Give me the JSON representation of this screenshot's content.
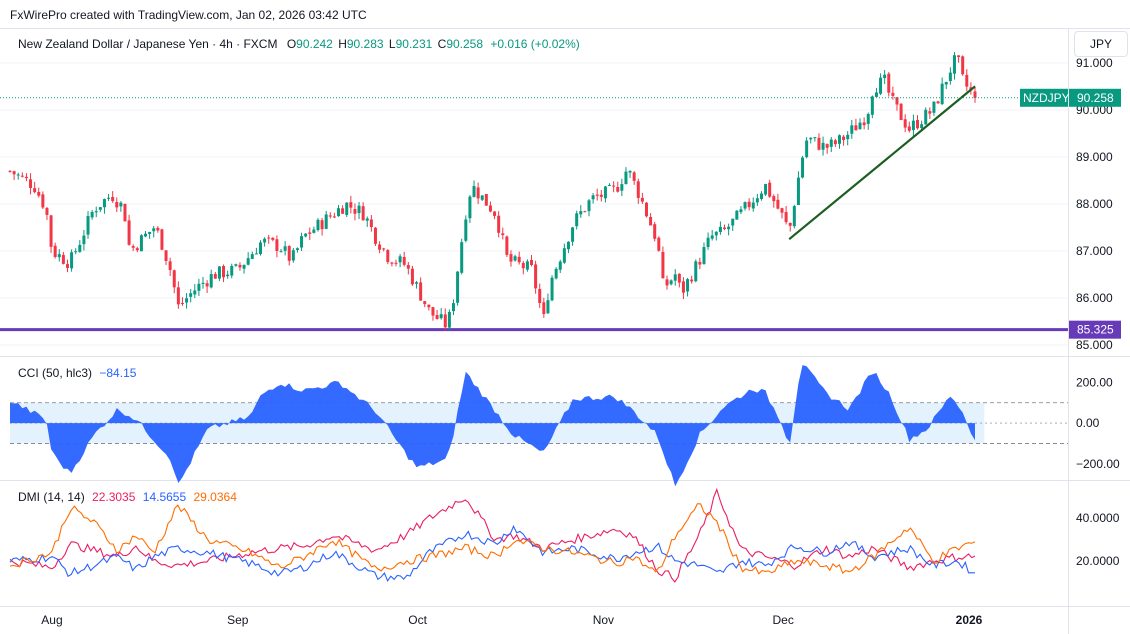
{
  "page_title": "FxWirePro created with TradingView.com, Jan 02, 2026 03:42 UTC",
  "symbol_header": {
    "name": "New Zealand Dollar / Japanese Yen · 4h · FXCM",
    "o_label": "O",
    "o_value": "90.242",
    "h_label": "H",
    "h_value": "90.283",
    "l_label": "L",
    "l_value": "90.231",
    "c_label": "C",
    "c_value": "90.258",
    "change": "+0.016 (+0.02%)"
  },
  "currency_button": "JPY",
  "price_axis_badge": {
    "symbol": "NZDJPY",
    "value": "90.258"
  },
  "support_badge": "85.325",
  "cci_header": {
    "label": "CCI (50, hlc3)",
    "value": "−84.15"
  },
  "dmi_header": {
    "label": "DMI (14, 14)",
    "plus_di": "22.3035",
    "minus_di": "14.5655",
    "adx": "29.0364"
  },
  "colors": {
    "up": "#089981",
    "down": "#f23645",
    "trendline": "#1b5e20",
    "support": "#673ab7",
    "cci_fill": "#2962ff",
    "cci_band": "#e3f2fd",
    "plus_di": "#e91e63",
    "minus_di": "#2962ff",
    "adx": "#ff6d00",
    "last_price": "#089981"
  },
  "chart_data": [
    {
      "type": "candlestick",
      "title": "New Zealand Dollar / Japanese Yen · 4h · FXCM",
      "y_axis_ticks": [
        "91.000",
        "90.000",
        "89.000",
        "88.000",
        "87.000",
        "86.000",
        "85.000"
      ],
      "ylim": [
        84.85,
        91.7
      ],
      "x_axis_ticks": [
        "Aug",
        "Sep",
        "Oct",
        "Nov",
        "Dec",
        "2026"
      ],
      "close_path": [
        [
          "Jul 25",
          88.7
        ],
        [
          "Jul 29",
          88.4
        ],
        [
          "Jul 31",
          87.9
        ],
        [
          "Aug 1",
          87.0
        ],
        [
          "Aug 4",
          86.75
        ],
        [
          "Aug 6",
          87.3
        ],
        [
          "Aug 8",
          87.9
        ],
        [
          "Aug 11",
          88.2
        ],
        [
          "Aug 13",
          87.9
        ],
        [
          "Aug 14",
          87.0
        ],
        [
          "Aug 18",
          87.5
        ],
        [
          "Aug 19",
          87.3
        ],
        [
          "Aug 21",
          86.5
        ],
        [
          "Aug 22",
          85.8
        ],
        [
          "Aug 25",
          86.2
        ],
        [
          "Aug 28",
          86.5
        ],
        [
          "Sep 1",
          86.6
        ],
        [
          "Sep 3",
          86.9
        ],
        [
          "Sep 5",
          87.2
        ],
        [
          "Sep 8",
          87.1
        ],
        [
          "Sep 10",
          86.8
        ],
        [
          "Sep 12",
          87.3
        ],
        [
          "Sep 15",
          87.6
        ],
        [
          "Sep 17",
          87.8
        ],
        [
          "Sep 19",
          88.0
        ],
        [
          "Sep 22",
          87.8
        ],
        [
          "Sep 24",
          87.3
        ],
        [
          "Sep 26",
          86.9
        ],
        [
          "Sep 29",
          86.7
        ],
        [
          "Oct 1",
          86.2
        ],
        [
          "Oct 3",
          85.7
        ],
        [
          "Oct 6",
          85.4
        ],
        [
          "Oct 7",
          86.0
        ],
        [
          "Oct 9",
          87.8
        ],
        [
          "Oct 10",
          88.4
        ],
        [
          "Oct 14",
          87.8
        ],
        [
          "Oct 16",
          86.8
        ],
        [
          "Oct 20",
          86.6
        ],
        [
          "Oct 21",
          86.1
        ],
        [
          "Oct 22",
          85.5
        ],
        [
          "Oct 23",
          86.3
        ],
        [
          "Oct 27",
          87.6
        ],
        [
          "Oct 30",
          88.1
        ],
        [
          "Nov 3",
          88.3
        ],
        [
          "Nov 5",
          88.75
        ],
        [
          "Nov 7",
          88.2
        ],
        [
          "Nov 10",
          87.2
        ],
        [
          "Nov 11",
          86.2
        ],
        [
          "Nov 13",
          86.5
        ],
        [
          "Nov 14",
          86.1
        ],
        [
          "Nov 17",
          86.8
        ],
        [
          "Nov 19",
          87.3
        ],
        [
          "Nov 21",
          87.4
        ],
        [
          "Nov 24",
          87.8
        ],
        [
          "Nov 26",
          88.1
        ],
        [
          "Nov 28",
          88.4
        ],
        [
          "Dec 1",
          87.7
        ],
        [
          "Dec 2",
          87.4
        ],
        [
          "Dec 4",
          88.9
        ],
        [
          "Dec 5",
          89.4
        ],
        [
          "Dec 8",
          89.2
        ],
        [
          "Dec 10",
          89.3
        ],
        [
          "Dec 12",
          89.5
        ],
        [
          "Dec 15",
          89.9
        ],
        [
          "Dec 16",
          90.5
        ],
        [
          "Dec 18",
          90.6
        ],
        [
          "Dec 19",
          90.2
        ],
        [
          "Dec 22",
          89.6
        ],
        [
          "Dec 24",
          89.8
        ],
        [
          "Dec 26",
          90.0
        ],
        [
          "Dec 29",
          90.9
        ],
        [
          "Dec 30",
          91.1
        ],
        [
          "Dec 31",
          90.6
        ],
        [
          "Jan 2",
          90.258
        ]
      ],
      "trendline": {
        "from": [
          "Dec 2",
          87.25
        ],
        "to": [
          "Jan 2",
          90.5
        ]
      },
      "support_level": 85.325,
      "last_price": 90.258
    },
    {
      "type": "area",
      "title": "CCI (50, hlc3)",
      "y_axis_ticks": [
        "200.00",
        "0.00",
        "−200.00"
      ],
      "bands": [
        100,
        -100
      ],
      "ylim": [
        -260,
        300
      ],
      "values_path": [
        [
          "Jul 25",
          110
        ],
        [
          "Jul 31",
          20
        ],
        [
          "Aug 1",
          -150
        ],
        [
          "Aug 4",
          -250
        ],
        [
          "Aug 8",
          -60
        ],
        [
          "Aug 12",
          70
        ],
        [
          "Aug 15",
          20
        ],
        [
          "Aug 18",
          -80
        ],
        [
          "Aug 21",
          -180
        ],
        [
          "Aug 22",
          -310
        ],
        [
          "Aug 27",
          -30
        ],
        [
          "Sep 3",
          30
        ],
        [
          "Sep 5",
          140
        ],
        [
          "Sep 8",
          200
        ],
        [
          "Sep 12",
          160
        ],
        [
          "Sep 18",
          200
        ],
        [
          "Sep 24",
          60
        ],
        [
          "Sep 29",
          -150
        ],
        [
          "Oct 1",
          -220
        ],
        [
          "Oct 6",
          -180
        ],
        [
          "Oct 7",
          -50
        ],
        [
          "Oct 9",
          250
        ],
        [
          "Oct 14",
          60
        ],
        [
          "Oct 17",
          -60
        ],
        [
          "Oct 22",
          -150
        ],
        [
          "Oct 27",
          120
        ],
        [
          "Nov 3",
          130
        ],
        [
          "Nov 6",
          60
        ],
        [
          "Nov 10",
          -60
        ],
        [
          "Nov 13",
          -310
        ],
        [
          "Nov 17",
          -60
        ],
        [
          "Nov 21",
          80
        ],
        [
          "Nov 26",
          170
        ],
        [
          "Nov 28",
          150
        ],
        [
          "Dec 1",
          -10
        ],
        [
          "Dec 2",
          -120
        ],
        [
          "Dec 4",
          300
        ],
        [
          "Dec 8",
          150
        ],
        [
          "Dec 12",
          70
        ],
        [
          "Dec 16",
          260
        ],
        [
          "Dec 19",
          130
        ],
        [
          "Dec 22",
          -80
        ],
        [
          "Dec 25",
          -30
        ],
        [
          "Dec 29",
          140
        ],
        [
          "Dec 31",
          50
        ],
        [
          "Jan 2",
          -84.15
        ]
      ]
    },
    {
      "type": "line",
      "title": "DMI (14, 14)",
      "y_axis_ticks": [
        "40.0000",
        "20.0000"
      ],
      "ylim": [
        0,
        55
      ],
      "series": [
        {
          "name": "+DI",
          "values_path": [
            [
              "Jul 25",
              20
            ],
            [
              "Aug 1",
              17
            ],
            [
              "Aug 4",
              28
            ],
            [
              "Aug 8",
              25
            ],
            [
              "Aug 12",
              22
            ],
            [
              "Aug 15",
              27
            ],
            [
              "Aug 18",
              20
            ],
            [
              "Aug 22",
              18
            ],
            [
              "Aug 27",
              20
            ],
            [
              "Sep 3",
              24
            ],
            [
              "Sep 8",
              26
            ],
            [
              "Sep 12",
              27
            ],
            [
              "Sep 17",
              32
            ],
            [
              "Sep 24",
              25
            ],
            [
              "Sep 29",
              32
            ],
            [
              "Oct 3",
              40
            ],
            [
              "Oct 9",
              50
            ],
            [
              "Oct 14",
              30
            ],
            [
              "Oct 17",
              32
            ],
            [
              "Oct 22",
              26
            ],
            [
              "Oct 27",
              30
            ],
            [
              "Nov 3",
              35
            ],
            [
              "Nov 6",
              32
            ],
            [
              "Nov 10",
              16
            ],
            [
              "Nov 13",
              12
            ],
            [
              "Nov 17",
              32
            ],
            [
              "Nov 20",
              52
            ],
            [
              "Nov 24",
              25
            ],
            [
              "Nov 28",
              22
            ],
            [
              "Dec 3",
              18
            ],
            [
              "Dec 8",
              26
            ],
            [
              "Dec 12",
              22
            ],
            [
              "Dec 16",
              26
            ],
            [
              "Dec 22",
              17
            ],
            [
              "Dec 26",
              20
            ],
            [
              "Dec 30",
              22
            ],
            [
              "Jan 2",
              22.3035
            ]
          ]
        },
        {
          "name": "−DI",
          "values_path": [
            [
              "Jul 25",
              20
            ],
            [
              "Aug 1",
              22
            ],
            [
              "Aug 4",
              14
            ],
            [
              "Aug 8",
              18
            ],
            [
              "Aug 12",
              22
            ],
            [
              "Aug 15",
              16
            ],
            [
              "Aug 18",
              22
            ],
            [
              "Aug 22",
              26
            ],
            [
              "Aug 27",
              24
            ],
            [
              "Sep 3",
              19
            ],
            [
              "Sep 8",
              14
            ],
            [
              "Sep 12",
              17
            ],
            [
              "Sep 17",
              24
            ],
            [
              "Sep 24",
              13
            ],
            [
              "Sep 29",
              12
            ],
            [
              "Oct 3",
              24
            ],
            [
              "Oct 9",
              33
            ],
            [
              "Oct 14",
              28
            ],
            [
              "Oct 17",
              36
            ],
            [
              "Oct 22",
              24
            ],
            [
              "Oct 27",
              26
            ],
            [
              "Nov 3",
              21
            ],
            [
              "Nov 6",
              24
            ],
            [
              "Nov 10",
              27
            ],
            [
              "Nov 13",
              20
            ],
            [
              "Nov 17",
              18
            ],
            [
              "Nov 20",
              14
            ],
            [
              "Nov 24",
              20
            ],
            [
              "Nov 28",
              18
            ],
            [
              "Dec 3",
              27
            ],
            [
              "Dec 8",
              24
            ],
            [
              "Dec 12",
              29
            ],
            [
              "Dec 16",
              22
            ],
            [
              "Dec 22",
              26
            ],
            [
              "Dec 26",
              18
            ],
            [
              "Dec 30",
              20
            ],
            [
              "Jan 2",
              14.5655
            ]
          ]
        },
        {
          "name": "ADX",
          "values_path": [
            [
              "Jul 25",
              18
            ],
            [
              "Aug 1",
              24
            ],
            [
              "Aug 4",
              45
            ],
            [
              "Aug 8",
              38
            ],
            [
              "Aug 12",
              25
            ],
            [
              "Aug 15",
              32
            ],
            [
              "Aug 18",
              24
            ],
            [
              "Aug 22",
              46
            ],
            [
              "Aug 27",
              30
            ],
            [
              "Sep 3",
              24
            ],
            [
              "Sep 8",
              17
            ],
            [
              "Sep 12",
              22
            ],
            [
              "Sep 17",
              30
            ],
            [
              "Sep 24",
              16
            ],
            [
              "Sep 29",
              20
            ],
            [
              "Oct 3",
              22
            ],
            [
              "Oct 9",
              26
            ],
            [
              "Oct 14",
              22
            ],
            [
              "Oct 17",
              30
            ],
            [
              "Oct 22",
              26
            ],
            [
              "Oct 27",
              24
            ],
            [
              "Nov 3",
              19
            ],
            [
              "Nov 6",
              22
            ],
            [
              "Nov 10",
              14
            ],
            [
              "Nov 13",
              32
            ],
            [
              "Nov 17",
              46
            ],
            [
              "Nov 20",
              38
            ],
            [
              "Nov 24",
              17
            ],
            [
              "Nov 28",
              14
            ],
            [
              "Dec 3",
              20
            ],
            [
              "Dec 8",
              18
            ],
            [
              "Dec 12",
              15
            ],
            [
              "Dec 16",
              22
            ],
            [
              "Dec 22",
              36
            ],
            [
              "Dec 26",
              20
            ],
            [
              "Dec 30",
              26
            ],
            [
              "Jan 2",
              29.0364
            ]
          ]
        }
      ]
    }
  ]
}
